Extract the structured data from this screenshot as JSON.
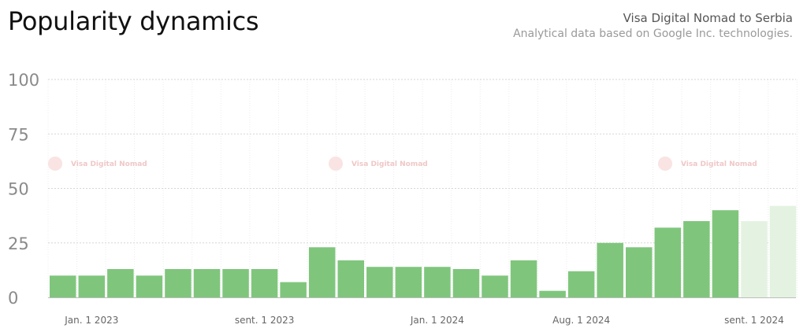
{
  "header": {
    "title": "Popularity dynamics",
    "subtitle": "Visa Digital Nomad to Serbia",
    "note": "Analytical data based on Google Inc. technologies."
  },
  "watermark": "Visa Digital Nomad",
  "colors": {
    "bar": "#7fc67c",
    "bar_partial": "#e4f3e1",
    "grid": "#d6d6d6"
  },
  "chart_data": {
    "type": "bar",
    "ylim": [
      0,
      100
    ],
    "yticks": [
      0,
      25,
      50,
      75,
      100
    ],
    "xtick_labels": [
      "Jan. 1 2023",
      "sent. 1 2023",
      "Jan. 1 2024",
      "Aug. 1 2024",
      "sent. 1 2024"
    ],
    "xtick_positions": [
      1,
      7,
      13,
      18,
      24
    ],
    "values": [
      10,
      10,
      13,
      10,
      13,
      13,
      13,
      13,
      7,
      23,
      17,
      14,
      14,
      14,
      13,
      10,
      17,
      3,
      12,
      25,
      23,
      32,
      35,
      40,
      35,
      42
    ],
    "partial": [
      false,
      false,
      false,
      false,
      false,
      false,
      false,
      false,
      false,
      false,
      false,
      false,
      false,
      false,
      false,
      false,
      false,
      false,
      false,
      false,
      false,
      false,
      false,
      false,
      true,
      true
    ]
  }
}
